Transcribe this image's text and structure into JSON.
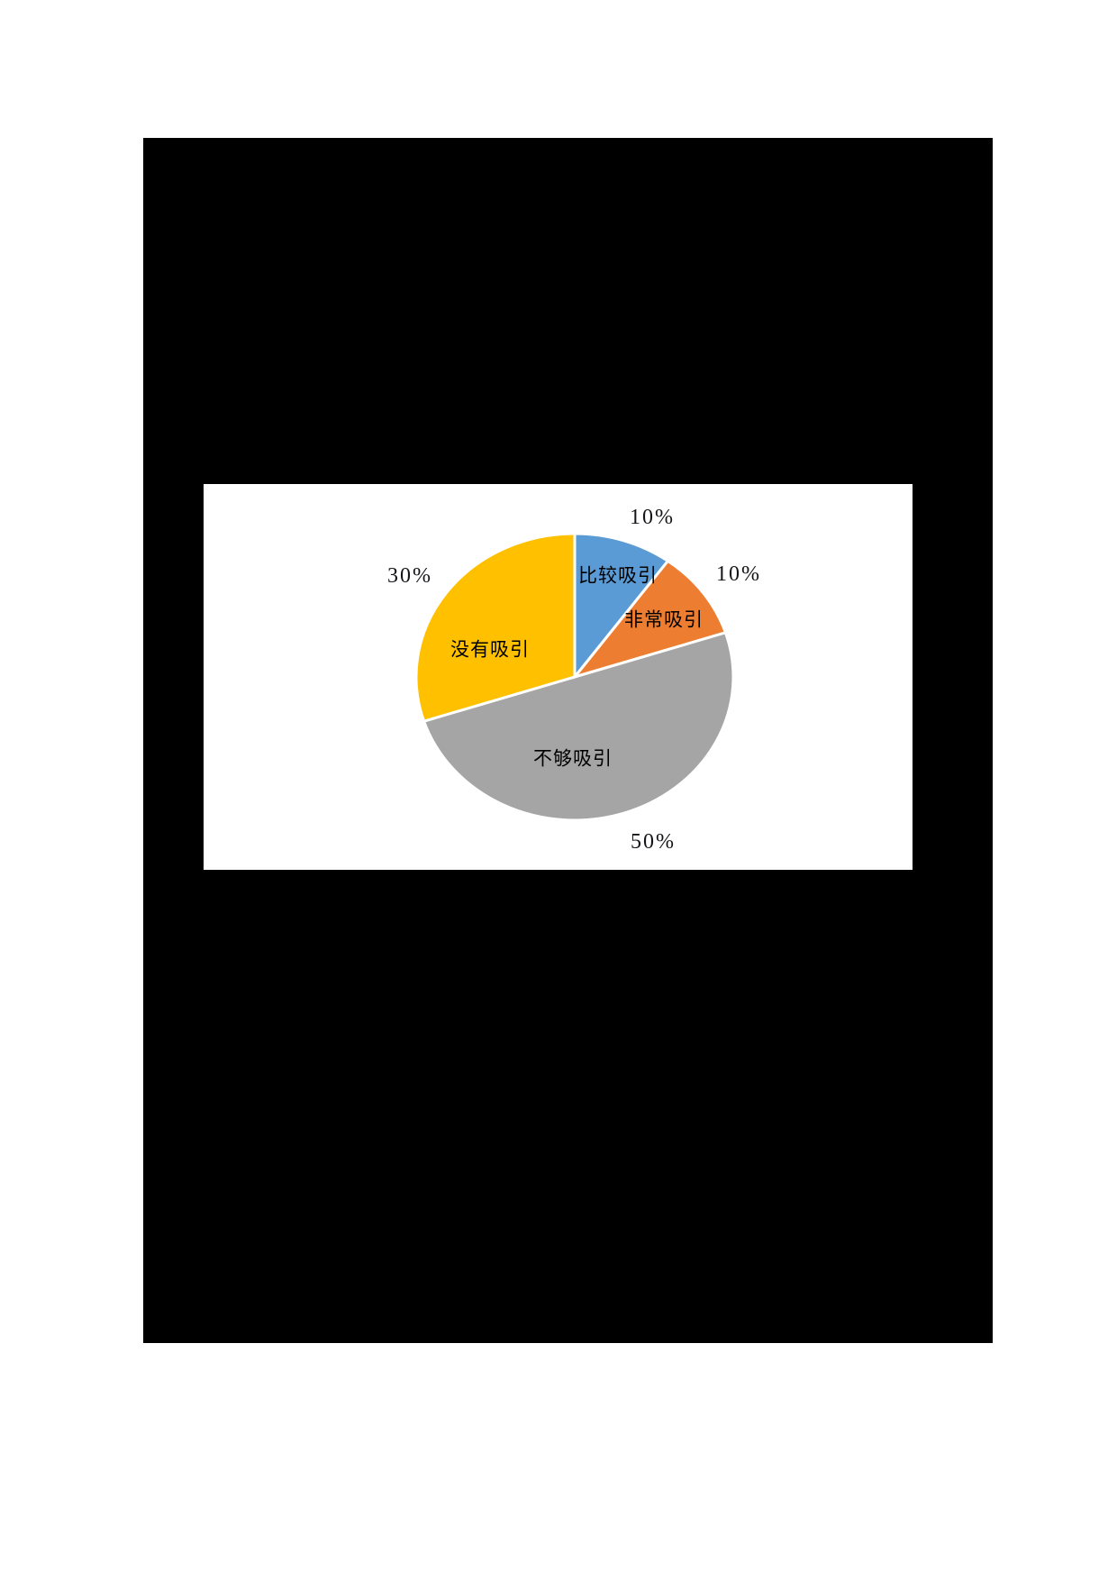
{
  "page": {
    "background_color": "#ffffff",
    "content_block_color": "#000000",
    "chart_panel_color": "#ffffff"
  },
  "chart_data": {
    "type": "pie",
    "title": "",
    "legend": "none",
    "grid": "off",
    "start_angle_deg": 0,
    "direction": "clockwise",
    "slice_label_position": "inside",
    "percent_label_position": "outside",
    "separator_color": "#ffffff",
    "label_text_color": "#000000",
    "slices": [
      {
        "label": "比较吸引",
        "value": 10,
        "pct_label": "10%",
        "color": "#5B9BD5"
      },
      {
        "label": "非常吸引",
        "value": 10,
        "pct_label": "10%",
        "color": "#ED7D31"
      },
      {
        "label": "不够吸引",
        "value": 50,
        "pct_label": "50%",
        "color": "#A5A5A5"
      },
      {
        "label": "没有吸引",
        "value": 30,
        "pct_label": "30%",
        "color": "#FFC000"
      }
    ]
  }
}
